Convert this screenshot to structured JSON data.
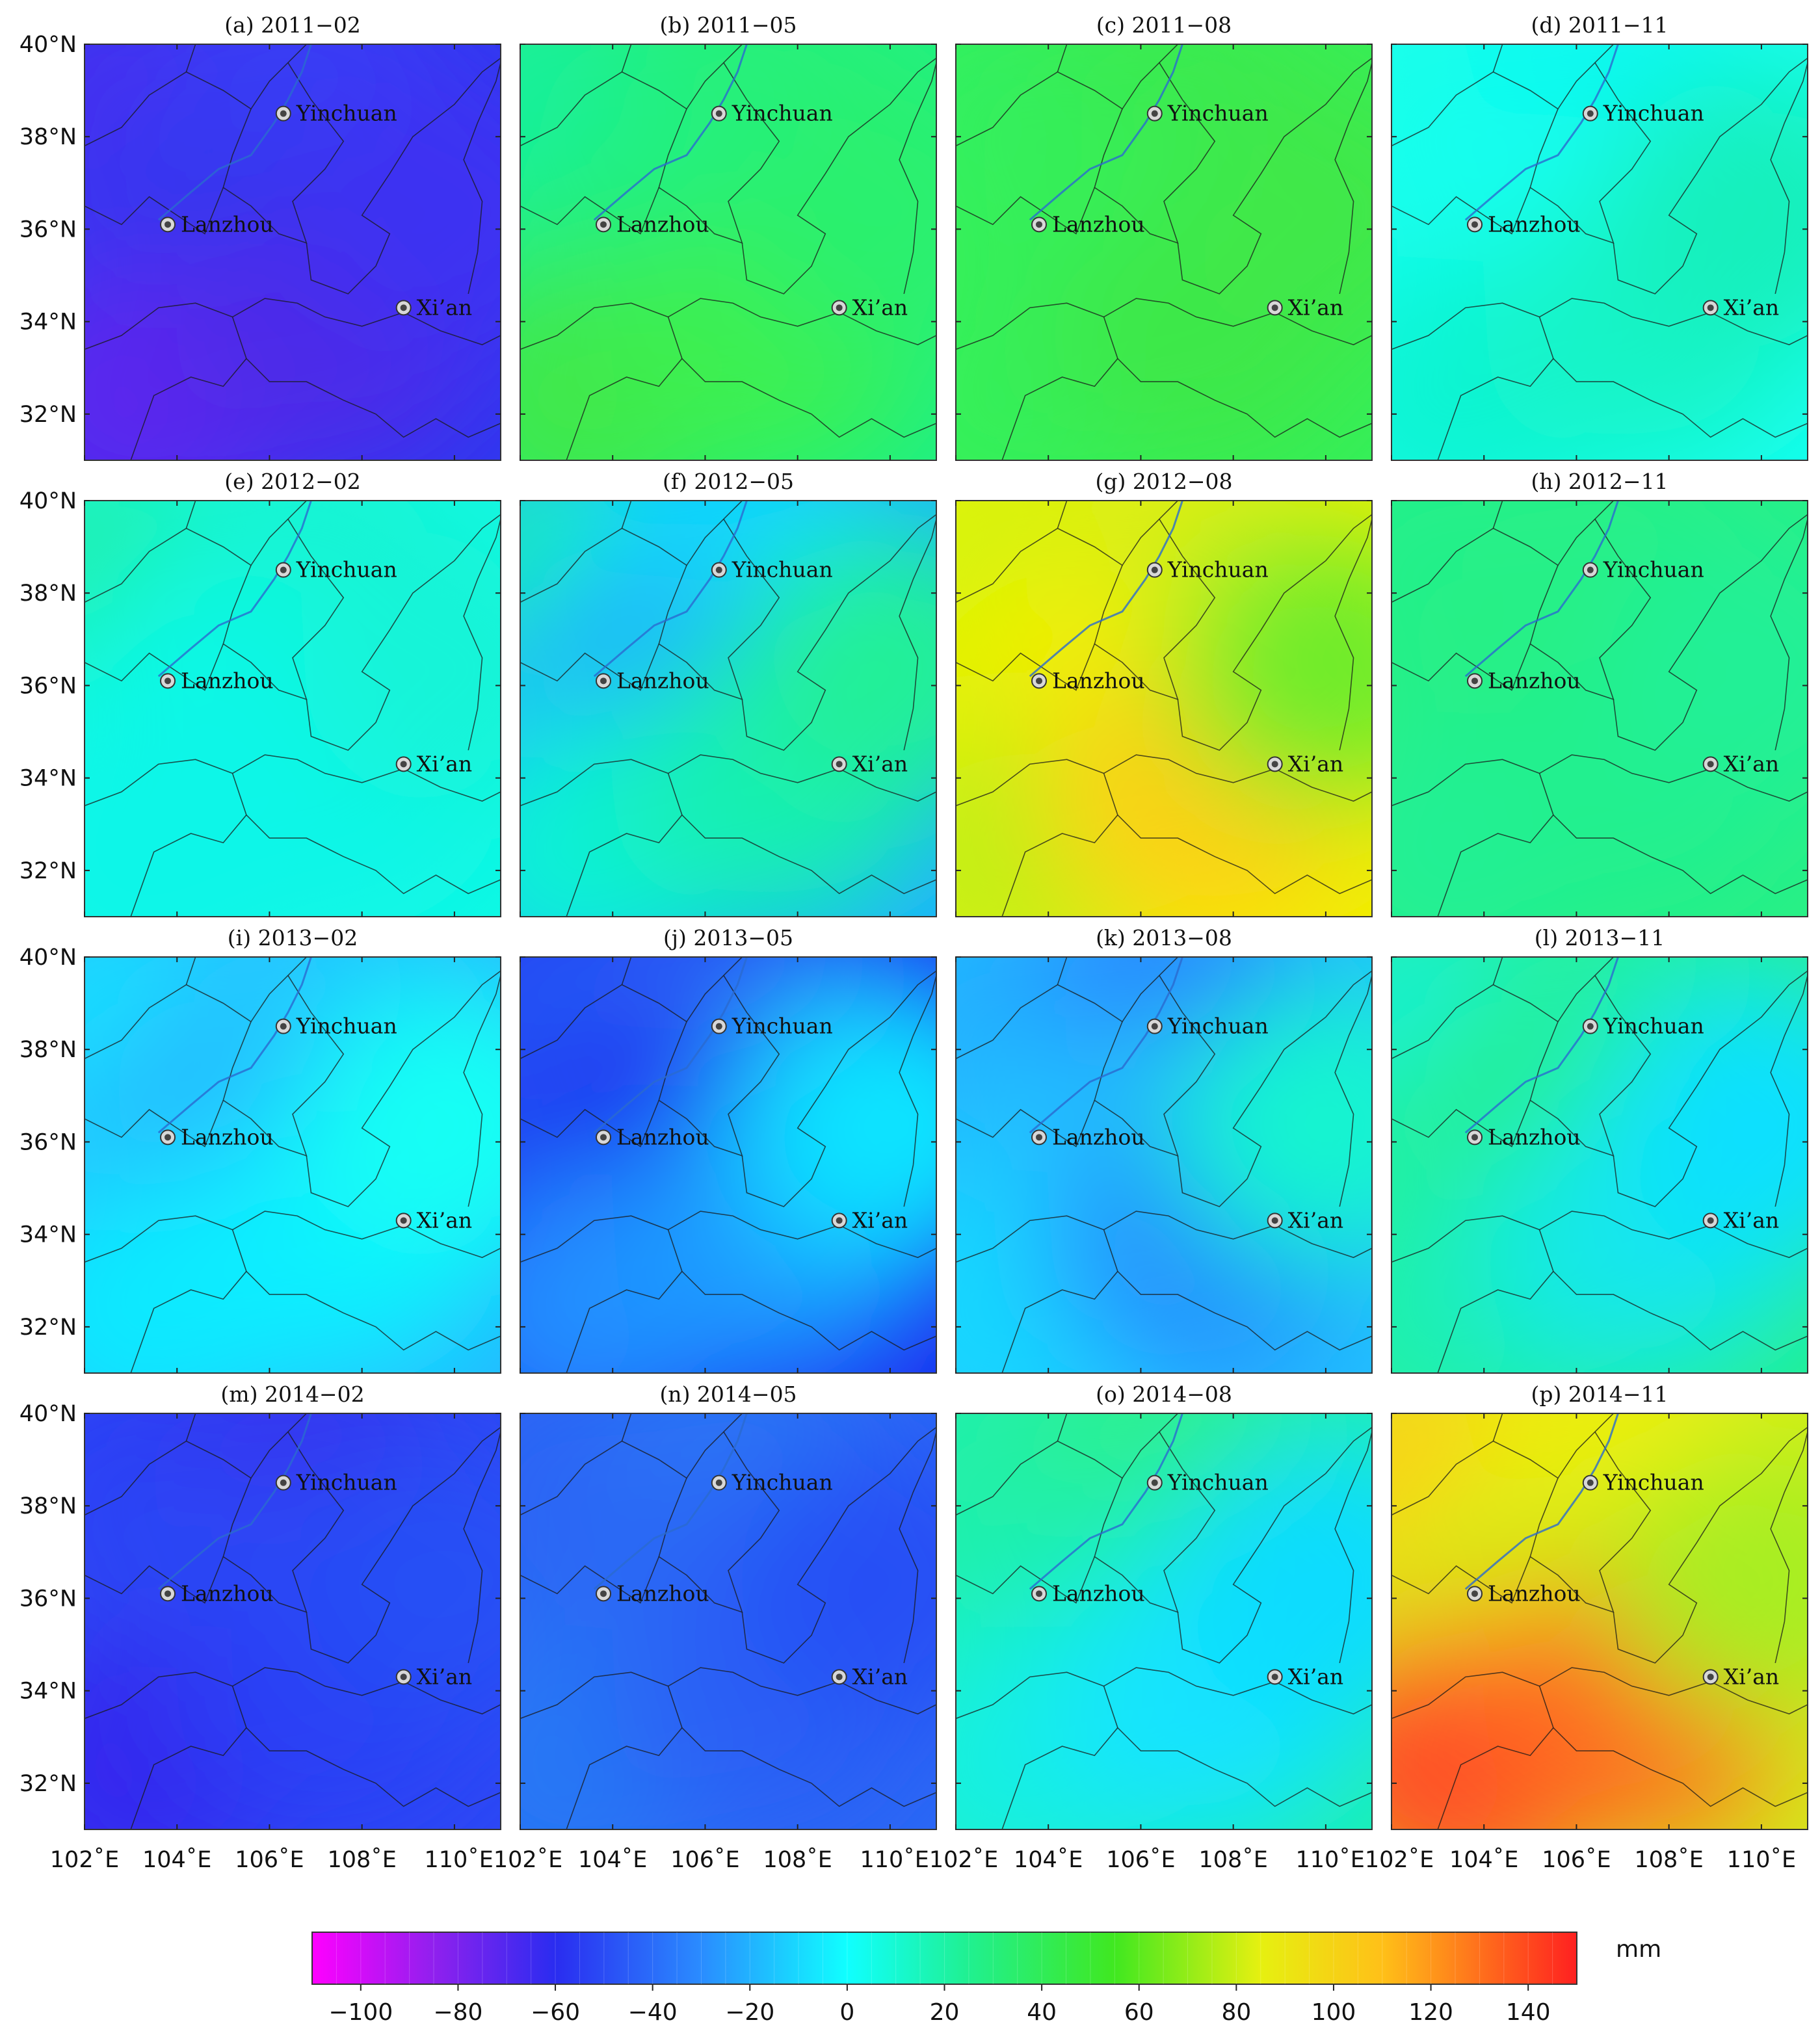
{
  "figure": {
    "panels": [
      {
        "label": "(a) 2011−02",
        "anomaly": [
          -80,
          -75,
          -95,
          -70,
          -65,
          -60
        ],
        "colors": [
          "#4a2ff0",
          "#3a3cf5",
          "#2d38f0",
          "#5c25ee",
          "#4e2ae8",
          "#3d32f2"
        ]
      },
      {
        "label": "(b) 2011−05",
        "anomaly": [
          30,
          45,
          40,
          50,
          50,
          45
        ],
        "colors": [
          "#12f0a0",
          "#26f07a",
          "#1ef084",
          "#3fe84c",
          "#3ef050",
          "#2cf06e"
        ]
      },
      {
        "label": "(c) 2011−08",
        "anomaly": [
          42,
          50,
          46,
          48,
          52,
          50
        ],
        "colors": [
          "#30f062",
          "#3aea50",
          "#34f05a",
          "#36f05a",
          "#3de84a",
          "#40e84a"
        ]
      },
      {
        "label": "(d) 2011−11",
        "anomaly": [
          0,
          2,
          0,
          10,
          14,
          18
        ],
        "colors": [
          "#14ffe8",
          "#10f8f0",
          "#16fff0",
          "#10f4d4",
          "#12f4c8",
          "#14f0bc"
        ]
      },
      {
        "label": "(e) 2012−02",
        "anomaly": [
          22,
          10,
          6,
          4,
          4,
          10
        ],
        "colors": [
          "#20f0a8",
          "#12f4d2",
          "#10f8e4",
          "#10f6e8",
          "#10f6e8",
          "#12f4d8"
        ]
      },
      {
        "label": "(f) 2012−05",
        "anomaly": [
          20,
          -10,
          -20,
          10,
          20,
          30
        ],
        "colors": [
          "#18f0b8",
          "#10d8ff",
          "#20b0ff",
          "#10f0d8",
          "#18f0b4",
          "#22f098"
        ]
      },
      {
        "label": "(g) 2012−08",
        "anomaly": [
          88,
          82,
          95,
          75,
          70,
          58
        ],
        "colors": [
          "#d2f410",
          "#d8ee14",
          "#f0f000",
          "#c2f018",
          "#ffd018",
          "#70ec2c"
        ]
      },
      {
        "label": "(h) 2012−11",
        "anomaly": [
          32,
          34,
          36,
          30,
          32,
          30
        ],
        "colors": [
          "#24f08c",
          "#26f088",
          "#28f084",
          "#22f094",
          "#24f08e",
          "#22f096"
        ]
      },
      {
        "label": "(i) 2013−02",
        "anomaly": [
          -10,
          -12,
          -14,
          -6,
          -4,
          0
        ],
        "colors": [
          "#14e2ff",
          "#20c8ff",
          "#26b8ff",
          "#10e8ff",
          "#10eeff",
          "#14fff4"
        ]
      },
      {
        "label": "(j) 2013−05",
        "anomaly": [
          -50,
          -45,
          -65,
          -30,
          -25,
          -5
        ],
        "colors": [
          "#2858f5",
          "#2a64f5",
          "#1c2cf0",
          "#208cff",
          "#1e9aff",
          "#10e4ff"
        ]
      },
      {
        "label": "(k) 2013−08",
        "anomaly": [
          -20,
          -30,
          -15,
          -10,
          -20,
          10
        ],
        "colors": [
          "#20b0ff",
          "#2c80ff",
          "#20c0ff",
          "#12d8ff",
          "#2890ff",
          "#14f4d0"
        ]
      },
      {
        "label": "(l) 2013−11",
        "anomaly": [
          10,
          25,
          30,
          20,
          10,
          5
        ],
        "colors": [
          "#12f0d8",
          "#20f0a4",
          "#26f090",
          "#1cf0b0",
          "#12e8e8",
          "#10e0ff"
        ]
      },
      {
        "label": "(m) 2014−02",
        "anomaly": [
          -65,
          -60,
          -55,
          -70,
          -62,
          -58
        ],
        "colors": [
          "#2a40f5",
          "#3636f0",
          "#2c48f5",
          "#3626ee",
          "#2a40f5",
          "#2650f5"
        ]
      },
      {
        "label": "(n) 2014−05",
        "anomaly": [
          -45,
          -40,
          -42,
          -40,
          -45,
          -48
        ],
        "colors": [
          "#2a64f5",
          "#2a74f5",
          "#2a68f5",
          "#2878f5",
          "#2a60f5",
          "#2850f5"
        ]
      },
      {
        "label": "(o) 2014−08",
        "anomaly": [
          20,
          25,
          20,
          5,
          0,
          -5
        ],
        "colors": [
          "#22f0a8",
          "#2ef08a",
          "#1ef0b0",
          "#12f0e0",
          "#14e4ff",
          "#10dcff"
        ]
      },
      {
        "label": "(p) 2014−11",
        "anomaly": [
          100,
          85,
          70,
          130,
          125,
          50
        ],
        "colors": [
          "#ffce14",
          "#f0ee10",
          "#d4ee18",
          "#ff5028",
          "#ff6a20",
          "#a8ee20"
        ]
      }
    ],
    "lat_ticks": [
      "40°N",
      "38°N",
      "36°N",
      "34°N",
      "32°N"
    ],
    "lon_ticks_panel": [
      "102°E",
      "104°E",
      "106°E",
      "108°E",
      "110°E"
    ],
    "lon_axis_labels": [
      "102˚E",
      "104˚E",
      "106˚E",
      "108˚E",
      "110˚E102˚E",
      "104˚E",
      "106˚E",
      "108˚E",
      "110˚E102˚E",
      "104˚E",
      "106˚E",
      "108˚E",
      "110˚E102˚E",
      "104˚E",
      "106˚E",
      "108˚E",
      "110˚E"
    ],
    "cities": [
      {
        "name": "Yinchuan",
        "lon": 106.3,
        "lat": 38.5
      },
      {
        "name": "Lanzhou",
        "lon": 103.8,
        "lat": 36.1
      },
      {
        "name": "Xi’an",
        "lon": 108.9,
        "lat": 34.3
      }
    ],
    "colorbar": {
      "unit": "mm",
      "min": -110,
      "max": 150,
      "ticks": [
        "−100",
        "−80",
        "−60",
        "−40",
        "−20",
        "0",
        "20",
        "40",
        "60",
        "80",
        "100",
        "120",
        "140"
      ],
      "tick_values": [
        -100,
        -80,
        -60,
        -40,
        -20,
        0,
        20,
        40,
        60,
        80,
        100,
        120,
        140
      ],
      "stops": [
        {
          "v": -110,
          "c": "#ff00ff"
        },
        {
          "v": -85,
          "c": "#9020ee"
        },
        {
          "v": -60,
          "c": "#2a2cf0"
        },
        {
          "v": -30,
          "c": "#2a8cff"
        },
        {
          "v": 0,
          "c": "#10ffff"
        },
        {
          "v": 25,
          "c": "#20f090"
        },
        {
          "v": 55,
          "c": "#40e820"
        },
        {
          "v": 85,
          "c": "#e6f010"
        },
        {
          "v": 110,
          "c": "#ffc018"
        },
        {
          "v": 150,
          "c": "#ff2020"
        }
      ]
    }
  }
}
